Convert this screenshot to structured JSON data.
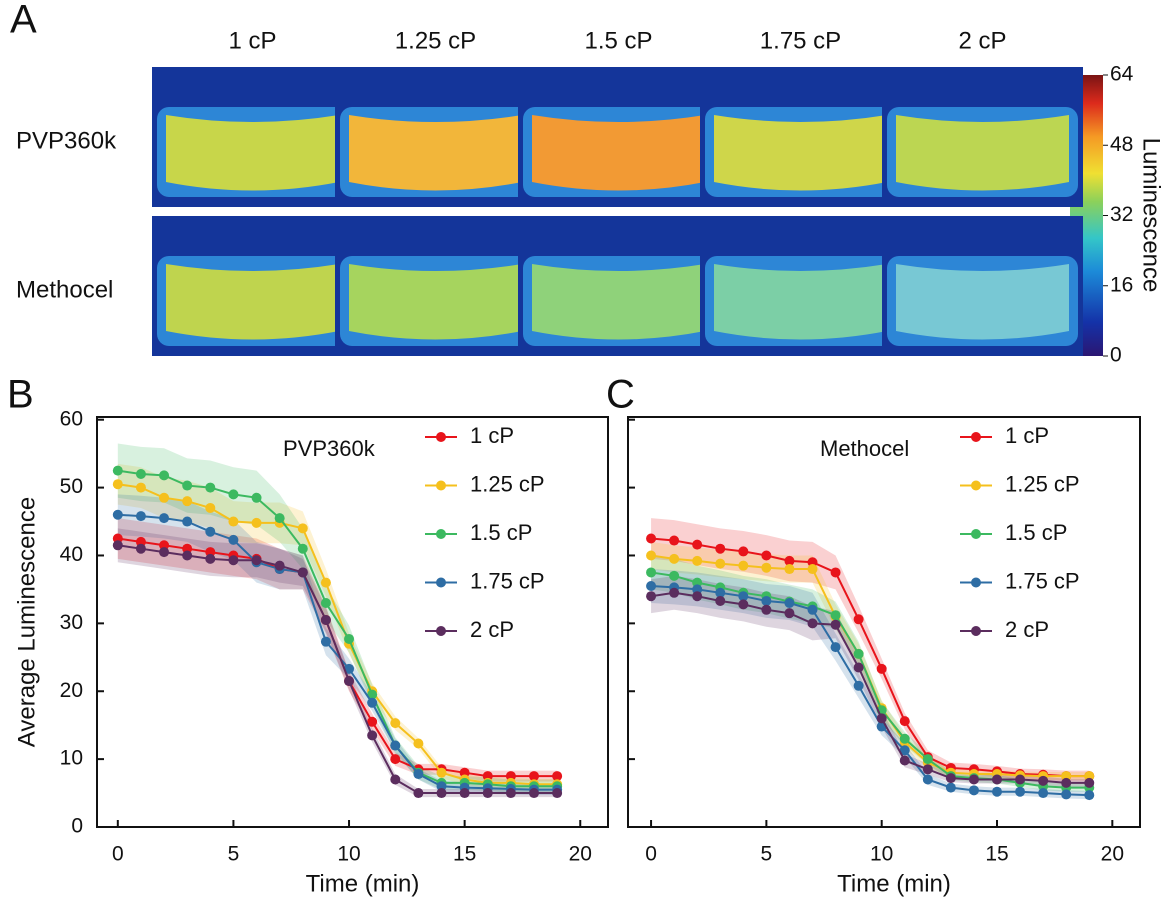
{
  "panel_a": {
    "label": "A",
    "columns": [
      "1 cP",
      "1.25 cP",
      "1.5 cP",
      "1.75 cP",
      "2 cP"
    ],
    "rows": [
      "PVP360k",
      "Methocel"
    ],
    "colorbar": {
      "label": "Luminescence",
      "lim": [
        0,
        64
      ],
      "ticks": [
        0,
        16,
        32,
        48,
        64
      ]
    }
  },
  "chart_data": [
    {
      "type": "line",
      "panel_label": "B",
      "annotation": "PVP360k",
      "xlabel": "Time (min)",
      "ylabel": "Average Luminescence",
      "xlim": [
        -0.9,
        21.2
      ],
      "ylim": [
        0,
        60.4
      ],
      "xticks": [
        0,
        5,
        10,
        15,
        20
      ],
      "yticks": [
        0,
        10,
        20,
        30,
        40,
        50,
        60
      ],
      "x": [
        0,
        1,
        2,
        3,
        4,
        5,
        6,
        7,
        8,
        9,
        10,
        11,
        12,
        13,
        14,
        15,
        16,
        17,
        18,
        19
      ],
      "series": [
        {
          "name": "1 cP",
          "color": "#e8141b",
          "values": [
            42.5,
            42,
            41.5,
            41,
            40.5,
            40,
            39.5,
            38,
            37.5,
            30.5,
            21.5,
            15.5,
            10,
            8.5,
            8.5,
            8,
            7.5,
            7.5,
            7.5,
            7.5
          ],
          "error": [
            3,
            3,
            3,
            3,
            3,
            3,
            3,
            3,
            2.5,
            2,
            1.5,
            1.2,
            1,
            0.8,
            0.8,
            0.8,
            0.8,
            0.8,
            0.8,
            0.8
          ]
        },
        {
          "name": "1.25 cP",
          "color": "#f5c01d",
          "values": [
            50.5,
            50,
            48.5,
            48,
            47,
            45,
            44.8,
            44.8,
            44,
            36,
            27,
            20,
            15.3,
            12.3,
            8,
            7,
            6.5,
            6.5,
            6.3,
            6.3
          ],
          "error": [
            3,
            3,
            3,
            3,
            3,
            3,
            3,
            3,
            2.5,
            2,
            1.5,
            1.2,
            1,
            0.8,
            0.8,
            0.8,
            0.8,
            0.8,
            0.8,
            0.8
          ]
        },
        {
          "name": "1.5 cP",
          "color": "#3cb960",
          "values": [
            52.5,
            52,
            51.8,
            50.3,
            50,
            49,
            48.5,
            45.5,
            41,
            33,
            27.7,
            19.5,
            12,
            8,
            6.5,
            6.5,
            6.3,
            6,
            6,
            6
          ],
          "error": [
            4,
            4,
            4,
            4,
            4,
            4,
            4,
            3.5,
            3,
            2.5,
            2,
            1.5,
            1.2,
            1,
            1,
            1,
            1,
            1,
            1,
            1
          ]
        },
        {
          "name": "1.75 cP",
          "color": "#2e6da4",
          "values": [
            46,
            45.8,
            45.5,
            45,
            43.5,
            42.3,
            39,
            38,
            37.5,
            27.3,
            23.3,
            18.3,
            12,
            7.8,
            6,
            5.8,
            5.7,
            5.6,
            5.5,
            5.5
          ],
          "error": [
            3,
            3,
            3,
            3,
            3,
            3,
            3,
            3,
            2.5,
            2,
            1.5,
            1.2,
            1,
            0.8,
            0.8,
            0.8,
            0.8,
            0.8,
            0.8,
            0.8
          ]
        },
        {
          "name": "2 cP",
          "color": "#5b2d5e",
          "values": [
            41.5,
            41,
            40.5,
            40,
            39.5,
            39.3,
            39.3,
            38.5,
            37.5,
            30.5,
            21.5,
            13.5,
            7,
            5,
            5,
            5,
            5,
            5,
            5,
            5
          ],
          "error": [
            2.5,
            2.5,
            2.5,
            2.5,
            2.5,
            2.5,
            2.5,
            2.5,
            2,
            1.8,
            1.3,
            1,
            0.8,
            0.6,
            0.6,
            0.6,
            0.6,
            0.6,
            0.6,
            0.6
          ]
        }
      ]
    },
    {
      "type": "line",
      "panel_label": "C",
      "annotation": "Methocel",
      "xlabel": "Time (min)",
      "xlim": [
        -1,
        21.2
      ],
      "ylim": [
        0,
        60.4
      ],
      "xticks": [
        0,
        5,
        10,
        15,
        20
      ],
      "yticks": [
        0,
        10,
        20,
        30,
        40,
        50,
        60
      ],
      "x": [
        0,
        1,
        2,
        3,
        4,
        5,
        6,
        7,
        8,
        9,
        10,
        11,
        12,
        13,
        14,
        15,
        16,
        17,
        18,
        19
      ],
      "series": [
        {
          "name": "1 cP",
          "color": "#e8141b",
          "values": [
            42.5,
            42.2,
            41.6,
            41,
            40.6,
            40,
            39.2,
            39,
            37.5,
            30.6,
            23.3,
            15.6,
            10.3,
            8.7,
            8.5,
            8.2,
            7.8,
            7.7,
            7.5,
            7.5
          ],
          "error": [
            3,
            3,
            3,
            3,
            3,
            3,
            3,
            3,
            2.5,
            2,
            1.5,
            1.2,
            1,
            0.8,
            0.8,
            0.8,
            0.8,
            0.8,
            0.8,
            0.8
          ]
        },
        {
          "name": "1.25 cP",
          "color": "#f5c01d",
          "values": [
            40,
            39.5,
            39.2,
            38.8,
            38.5,
            38.2,
            38,
            38,
            31,
            25.5,
            17.5,
            12.5,
            9.5,
            8,
            7.8,
            7.8,
            7.6,
            7.5,
            7.5,
            7.5
          ],
          "error": [
            2,
            2,
            2,
            2,
            2,
            2,
            2,
            2,
            1.8,
            1.5,
            1.2,
            1,
            0.8,
            0.6,
            0.6,
            0.6,
            0.6,
            0.6,
            0.6,
            0.6
          ]
        },
        {
          "name": "1.5 cP",
          "color": "#3cb960",
          "values": [
            37.5,
            37,
            36,
            35.3,
            34.5,
            34,
            33.2,
            32.5,
            31.2,
            25.5,
            17.2,
            13,
            10,
            7.5,
            7.2,
            7,
            6.5,
            6,
            5.8,
            5.8
          ],
          "error": [
            2.5,
            2.5,
            2.5,
            2.5,
            2.5,
            2.5,
            2.5,
            2.5,
            2,
            1.8,
            1.3,
            1,
            0.8,
            0.6,
            0.6,
            0.6,
            0.6,
            0.6,
            0.6,
            0.6
          ]
        },
        {
          "name": "1.75 cP",
          "color": "#2e6da4",
          "values": [
            35.5,
            35.3,
            35,
            34.5,
            34,
            33.3,
            33,
            32,
            26.5,
            20.8,
            14.8,
            11.3,
            7,
            5.8,
            5.4,
            5.2,
            5.2,
            5,
            4.8,
            4.7
          ],
          "error": [
            2.5,
            2.5,
            2.5,
            2.5,
            2.5,
            2.5,
            2.5,
            2.5,
            2,
            1.8,
            1.3,
            1,
            0.8,
            0.6,
            0.6,
            0.6,
            0.6,
            0.6,
            0.6,
            0.6
          ]
        },
        {
          "name": "2 cP",
          "color": "#5b2d5e",
          "values": [
            34,
            34.5,
            34,
            33.3,
            32.8,
            32,
            31.5,
            30,
            29.8,
            23.5,
            16,
            9.8,
            8.5,
            7.2,
            7,
            7,
            7,
            6.8,
            6.5,
            6.5
          ],
          "error": [
            2.5,
            2.5,
            2.5,
            2.5,
            2.5,
            2.5,
            2.5,
            2.5,
            2,
            1.8,
            1.3,
            1,
            0.8,
            0.6,
            0.6,
            0.6,
            0.6,
            0.6,
            0.6,
            0.6
          ]
        }
      ]
    }
  ]
}
